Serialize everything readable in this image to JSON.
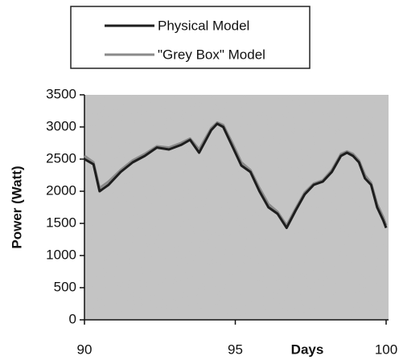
{
  "chart_data": {
    "type": "line",
    "xlabel": "Days",
    "ylabel": "Power (Watt)",
    "xlim": [
      90,
      100
    ],
    "xticks": [
      90,
      95,
      100
    ],
    "ylim": [
      0,
      3500
    ],
    "yticks": [
      0,
      500,
      1000,
      1500,
      2000,
      2500,
      3000,
      3500
    ],
    "legend": "top",
    "x": [
      90,
      90.3,
      90.5,
      90.8,
      91.2,
      91.6,
      92,
      92.4,
      92.8,
      93.2,
      93.5,
      93.8,
      94.2,
      94.4,
      94.6,
      94.9,
      95.2,
      95.5,
      95.8,
      96.1,
      96.4,
      96.7,
      97,
      97.3,
      97.6,
      97.9,
      98.2,
      98.5,
      98.7,
      98.9,
      99.1,
      99.3,
      99.5,
      99.7,
      99.9,
      100
    ],
    "series": [
      {
        "name": "Physical Model",
        "color": "#1e1e1e",
        "values": [
          2500,
          2420,
          2000,
          2100,
          2300,
          2450,
          2550,
          2680,
          2650,
          2720,
          2800,
          2600,
          2950,
          3050,
          3000,
          2700,
          2400,
          2300,
          2000,
          1750,
          1650,
          1430,
          1700,
          1950,
          2100,
          2150,
          2300,
          2550,
          2600,
          2550,
          2450,
          2200,
          2100,
          1750,
          1550,
          1430
        ]
      },
      {
        "name": "\"Grey Box\" Model",
        "color": "#8a8a8a",
        "values": [
          2550,
          2450,
          2050,
          2150,
          2330,
          2480,
          2580,
          2700,
          2680,
          2750,
          2820,
          2650,
          2980,
          3070,
          3030,
          2750,
          2450,
          2330,
          2050,
          1800,
          1680,
          1470,
          1730,
          1980,
          2120,
          2170,
          2330,
          2580,
          2620,
          2580,
          2480,
          2250,
          2130,
          1800,
          1600,
          1470
        ]
      }
    ]
  }
}
